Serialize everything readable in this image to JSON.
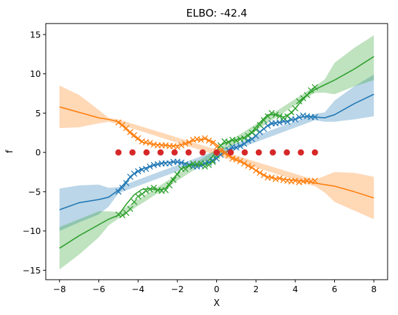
{
  "chart_data": {
    "type": "line",
    "title": "ELBO: -42.4",
    "xlabel": "X",
    "ylabel": "f",
    "xlim": [
      -8.7,
      8.7
    ],
    "ylim": [
      -16.2,
      16.4
    ],
    "xticks": [
      -8,
      -6,
      -4,
      -2,
      0,
      2,
      4,
      6,
      8
    ],
    "yticks": [
      -15,
      -10,
      -5,
      0,
      5,
      10,
      15
    ],
    "grid": false,
    "legend": "none",
    "series": [
      {
        "color": "#1f77b4",
        "mean": {
          "x": [
            -8,
            -7,
            -6,
            -5.5,
            -5,
            -4.6,
            -4.2,
            -3.8,
            -3.4,
            -3,
            -2.6,
            -2.2,
            -1.8,
            -1.4,
            -1,
            -0.6,
            -0.2,
            0.2,
            0.6,
            1,
            1.4,
            1.8,
            2.2,
            2.6,
            3,
            3.4,
            3.8,
            4.2,
            4.6,
            5,
            5.5,
            6,
            7,
            8
          ],
          "y": [
            -7.3,
            -6.4,
            -6,
            -5.7,
            -4.8,
            -3.7,
            -2.7,
            -2.1,
            -1.8,
            -1.5,
            -1.3,
            -1.2,
            -1.3,
            -1.5,
            -1.7,
            -1.5,
            -1.0,
            -0.3,
            0.3,
            0.7,
            1.1,
            1.7,
            2.6,
            3.4,
            3.8,
            3.9,
            4.1,
            4.4,
            4.6,
            4.5,
            4.4,
            4.8,
            6.2,
            7.4
          ]
        },
        "band": {
          "x": [
            -8,
            -7,
            -6,
            -5.5,
            -5,
            5,
            5.5,
            6,
            7,
            8
          ],
          "lower": [
            -10,
            -8.9,
            -7.9,
            -6.9,
            -5.2,
            4.1,
            3.9,
            3.9,
            4.2,
            4.6
          ],
          "upper": [
            -4.6,
            -4.2,
            -4.1,
            -4.5,
            -4.4,
            4.9,
            5.1,
            6.6,
            8.4,
            9.9
          ]
        },
        "observations": {
          "x": [
            -5.0,
            -4.8,
            -4.6,
            -4.4,
            -4.2,
            -4.0,
            -3.8,
            -3.6,
            -3.4,
            -3.2,
            -3.0,
            -2.8,
            -2.6,
            -2.4,
            -2.2,
            -2.0,
            -1.8,
            -1.6,
            -1.4,
            -1.2,
            -1.0,
            -0.8,
            -0.6,
            -0.4,
            -0.2,
            0.0,
            0.2,
            0.4,
            0.6,
            0.8,
            1.0,
            1.2,
            1.4,
            1.6,
            1.8,
            2.0,
            2.2,
            2.4,
            2.6,
            2.8,
            3.0,
            3.2,
            3.4,
            3.6,
            3.8,
            4.0,
            4.2,
            4.4,
            4.6,
            4.8,
            5.0
          ],
          "y": [
            -5.0,
            -4.5,
            -3.9,
            -3.1,
            -2.7,
            -2.4,
            -2.2,
            -2.1,
            -1.8,
            -1.6,
            -1.5,
            -1.4,
            -1.4,
            -1.4,
            -1.2,
            -1.2,
            -1.3,
            -1.5,
            -1.6,
            -1.8,
            -1.8,
            -1.7,
            -1.4,
            -1.3,
            -1.0,
            -0.8,
            -0.3,
            -0.1,
            0.3,
            0.7,
            0.6,
            0.8,
            1.1,
            1.5,
            1.7,
            2.1,
            2.6,
            3.0,
            3.4,
            3.7,
            3.7,
            3.8,
            4.0,
            3.9,
            4.2,
            4.2,
            4.5,
            4.7,
            4.6,
            4.5,
            4.5
          ]
        }
      },
      {
        "color": "#ff7f0e",
        "mean": {
          "x": [
            -8,
            -7,
            -6,
            -5.5,
            -5,
            -4.6,
            -4.2,
            -3.8,
            -3.4,
            -3,
            -2.6,
            -2.2,
            -1.8,
            -1.4,
            -1,
            -0.6,
            -0.2,
            0.2,
            0.6,
            1,
            1.4,
            1.8,
            2.2,
            2.6,
            3,
            3.4,
            3.8,
            4.2,
            4.6,
            5,
            5.5,
            6,
            7,
            8
          ],
          "y": [
            5.8,
            5.1,
            4.4,
            4.2,
            3.9,
            2.9,
            2.0,
            1.3,
            1.1,
            1.0,
            0.9,
            0.8,
            1.0,
            1.3,
            1.6,
            1.7,
            1.4,
            0.5,
            -0.3,
            -1.0,
            -1.4,
            -2.0,
            -2.6,
            -3.1,
            -3.3,
            -3.4,
            -3.5,
            -3.6,
            -3.7,
            -3.9,
            -4.1,
            -4.3,
            -5.0,
            -5.8
          ]
        },
        "band": {
          "x": [
            -8,
            -7,
            -6,
            -5.5,
            -5,
            5,
            5.5,
            6,
            7,
            8
          ],
          "lower": [
            3.1,
            3.2,
            3.7,
            3.9,
            3.6,
            -4.3,
            -5.1,
            -6.3,
            -7.4,
            -8.5
          ],
          "upper": [
            8.5,
            7.3,
            5.4,
            4.4,
            4.2,
            -3.5,
            -3.0,
            -2.5,
            -2.6,
            -3.1
          ]
        },
        "observations": {
          "x": [
            -5.0,
            -4.8,
            -4.6,
            -4.4,
            -4.2,
            -4.0,
            -3.8,
            -3.6,
            -3.4,
            -3.2,
            -3.0,
            -2.8,
            -2.6,
            -2.4,
            -2.2,
            -2.0,
            -1.8,
            -1.6,
            -1.4,
            -1.2,
            -1.0,
            -0.8,
            -0.6,
            -0.4,
            -0.2,
            0.0,
            0.2,
            0.4,
            0.6,
            0.8,
            1.0,
            1.2,
            1.4,
            1.6,
            1.8,
            2.0,
            2.2,
            2.4,
            2.6,
            2.8,
            3.0,
            3.2,
            3.4,
            3.6,
            3.8,
            4.0,
            4.2,
            4.4,
            4.6,
            4.8,
            5.0
          ],
          "y": [
            3.8,
            3.5,
            3.1,
            2.6,
            2.2,
            1.8,
            1.4,
            1.3,
            1.2,
            1.0,
            0.9,
            0.9,
            0.9,
            0.8,
            0.8,
            0.7,
            0.9,
            1.1,
            1.3,
            1.6,
            1.7,
            1.6,
            1.8,
            1.5,
            1.2,
            0.7,
            0.2,
            -0.1,
            -0.4,
            -0.8,
            -0.9,
            -1.1,
            -1.4,
            -1.7,
            -1.9,
            -2.3,
            -2.6,
            -2.9,
            -3.2,
            -3.2,
            -3.4,
            -3.3,
            -3.5,
            -3.6,
            -3.7,
            -3.6,
            -3.8,
            -3.7,
            -3.6,
            -3.7,
            -3.6
          ]
        }
      },
      {
        "color": "#2ca02c",
        "mean": {
          "x": [
            -8,
            -7,
            -6,
            -5.5,
            -5,
            -4.6,
            -4.2,
            -3.8,
            -3.4,
            -3,
            -2.6,
            -2.2,
            -1.8,
            -1.4,
            -1,
            -0.6,
            -0.2,
            0.2,
            0.6,
            1,
            1.4,
            1.8,
            2.2,
            2.6,
            3,
            3.4,
            3.8,
            4.2,
            4.6,
            5,
            5.5,
            6,
            7,
            8
          ],
          "y": [
            -12.2,
            -10.6,
            -9.2,
            -8.5,
            -8.0,
            -6.6,
            -5.4,
            -4.7,
            -4.6,
            -4.8,
            -4.6,
            -3.3,
            -2.1,
            -1.6,
            -1.6,
            -1.5,
            -0.5,
            0.9,
            1.4,
            1.6,
            1.9,
            2.6,
            3.8,
            4.8,
            4.8,
            4.5,
            5.0,
            6.2,
            7.3,
            8.0,
            8.6,
            9.2,
            10.6,
            12.2
          ]
        },
        "band": {
          "x": [
            -8,
            -7,
            -6,
            -5.5,
            -5,
            5,
            5.5,
            6,
            7,
            8
          ],
          "lower": [
            -14.9,
            -13.0,
            -10.8,
            -9.3,
            -8.4,
            7.6,
            7.6,
            7.4,
            8.4,
            9.2
          ],
          "upper": [
            -9.5,
            -8.5,
            -7.5,
            -7.5,
            -7.6,
            8.4,
            9.3,
            11.4,
            13.3,
            14.9
          ]
        },
        "observations": {
          "x": [
            -5.0,
            -4.8,
            -4.6,
            -4.4,
            -4.2,
            -4.0,
            -3.8,
            -3.6,
            -3.4,
            -3.2,
            -3.0,
            -2.8,
            -2.6,
            -2.4,
            -2.2,
            -2.0,
            -1.8,
            -1.6,
            -1.4,
            -1.2,
            -1.0,
            -0.8,
            -0.6,
            -0.4,
            -0.2,
            0.0,
            0.2,
            0.4,
            0.6,
            0.8,
            1.0,
            1.2,
            1.4,
            1.6,
            1.8,
            2.0,
            2.2,
            2.4,
            2.6,
            2.8,
            3.0,
            3.2,
            3.4,
            3.6,
            3.8,
            4.0,
            4.2,
            4.4,
            4.6,
            4.8,
            5.0
          ],
          "y": [
            -7.9,
            -8.0,
            -7.7,
            -7.2,
            -6.3,
            -5.6,
            -5.3,
            -4.9,
            -4.7,
            -4.5,
            -4.8,
            -4.9,
            -4.8,
            -4.2,
            -3.5,
            -2.8,
            -2.1,
            -2.1,
            -1.7,
            -1.4,
            -1.5,
            -1.4,
            -1.8,
            -1.6,
            -1.2,
            -0.4,
            0.9,
            1.4,
            1.3,
            1.6,
            1.5,
            1.7,
            1.8,
            2.1,
            2.5,
            2.9,
            3.5,
            4.1,
            4.6,
            5.0,
            4.8,
            4.6,
            4.4,
            4.6,
            5.1,
            5.6,
            6.5,
            6.9,
            7.3,
            7.9,
            8.3
          ]
        }
      }
    ],
    "inducing_points": {
      "color": "#d62728",
      "x": [
        -5.0,
        -4.286,
        -3.571,
        -2.857,
        -2.143,
        -1.429,
        -0.714,
        0.0,
        0.714,
        1.429,
        2.143,
        2.857,
        3.571,
        4.286,
        5.0
      ],
      "y": [
        0,
        0,
        0,
        0,
        0,
        0,
        0,
        0,
        0,
        0,
        0,
        0,
        0,
        0,
        0
      ]
    }
  }
}
